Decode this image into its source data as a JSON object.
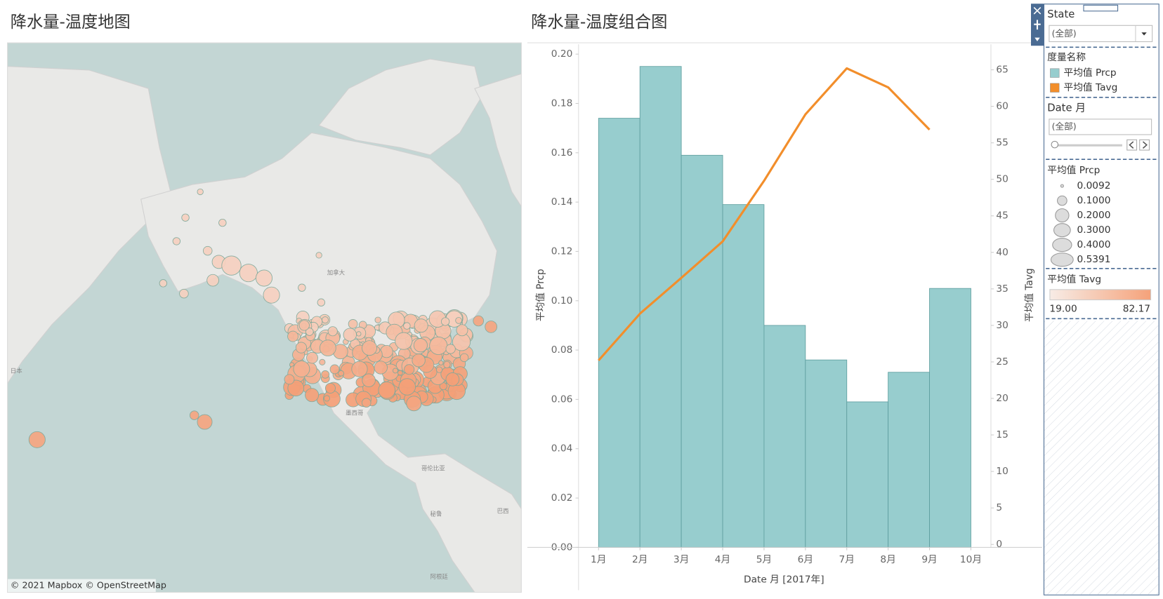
{
  "map": {
    "title": "降水量-温度地图",
    "labels": [
      "加拿大",
      "墨西哥",
      "哥伦比亚",
      "秘鲁",
      "巴西",
      "阿根廷",
      "日本"
    ],
    "attribution": "© 2021 Mapbox © OpenStreetMap"
  },
  "chart_data": {
    "type": "combo",
    "title": "降水量-温度组合图",
    "categories": [
      "1月",
      "2月",
      "3月",
      "4月",
      "5月",
      "6月",
      "7月",
      "8月",
      "9月",
      "10月"
    ],
    "series": [
      {
        "name": "平均值 Prcp",
        "type": "bar",
        "color": "#97cdce",
        "values": [
          0.174,
          0.195,
          0.159,
          0.139,
          0.09,
          0.076,
          0.059,
          0.071,
          0.105,
          null
        ]
      },
      {
        "name": "平均值 Tavg",
        "type": "line",
        "axis": "y2",
        "color": "#f28e2b",
        "values": [
          25.2,
          31.6,
          36.5,
          41.5,
          49.8,
          58.9,
          65.2,
          62.6,
          56.8,
          null
        ]
      }
    ],
    "xlabel": "Date 月 [2017年]",
    "ylabel": "平均值 Prcp",
    "y2label": "平均值 Tavg",
    "ylim": [
      0,
      0.204
    ],
    "yticks": [
      {
        "value": 0,
        "label": "0.00"
      },
      {
        "value": 0.02,
        "label": "0.02"
      },
      {
        "value": 0.04,
        "label": "0.04"
      },
      {
        "value": 0.06,
        "label": "0.06"
      },
      {
        "value": 0.08,
        "label": "0.08"
      },
      {
        "value": 0.1,
        "label": "0.10"
      },
      {
        "value": 0.12,
        "label": "0.12"
      },
      {
        "value": 0.14,
        "label": "0.14"
      },
      {
        "value": 0.16,
        "label": "0.16"
      },
      {
        "value": 0.18,
        "label": "0.18"
      },
      {
        "value": 0.2,
        "label": "0.20"
      }
    ],
    "y2lim": [
      -0.4,
      68.5
    ],
    "y2ticks": [
      0,
      5,
      10,
      15,
      20,
      25,
      30,
      35,
      40,
      45,
      50,
      55,
      60,
      65
    ]
  },
  "filters": {
    "state": {
      "title": "State",
      "value": "(全部)"
    },
    "measures": {
      "title": "度量名称"
    },
    "date": {
      "title": "Date 月",
      "value": "(全部)"
    },
    "size_legend": {
      "title": "平均值 Prcp",
      "items": [
        {
          "value": 0.0092,
          "label": "0.0092"
        },
        {
          "value": 0.1,
          "label": "0.1000"
        },
        {
          "value": 0.2,
          "label": "0.2000"
        },
        {
          "value": 0.3,
          "label": "0.3000"
        },
        {
          "value": 0.4,
          "label": "0.4000"
        },
        {
          "value": 0.5391,
          "label": "0.5391"
        }
      ]
    },
    "color_legend": {
      "title": "平均值 Tavg",
      "min": {
        "value": 19,
        "label": "19.00"
      },
      "max": 82.17
    }
  }
}
